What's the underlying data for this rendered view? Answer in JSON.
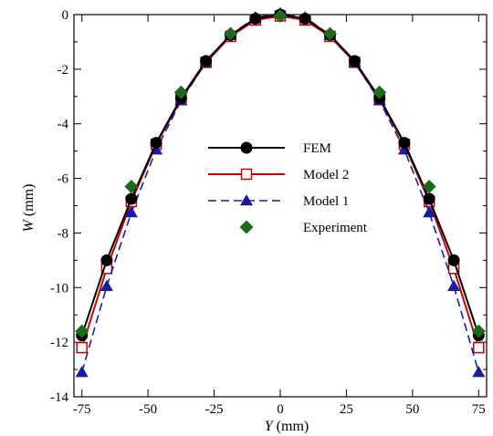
{
  "chart_data": {
    "type": "line",
    "xlabel": {
      "symbol": "Y",
      "unit": " (mm)"
    },
    "ylabel": {
      "symbol": "W",
      "unit": " (mm)"
    },
    "xlim": [
      -78,
      78
    ],
    "ylim": [
      -14,
      0
    ],
    "xticks": [
      -75,
      -50,
      -25,
      0,
      25,
      50,
      75
    ],
    "yticks": [
      0,
      -2,
      -4,
      -6,
      -8,
      -10,
      -12,
      -14
    ],
    "grid": false,
    "legend": "center",
    "series": [
      {
        "name": "FEM",
        "color": "#000000",
        "marker": "circle",
        "line": "solid",
        "x": [
          -75,
          -65.6,
          -56.3,
          -46.9,
          -37.5,
          -28.1,
          -18.8,
          -9.4,
          0,
          9.4,
          18.8,
          28.1,
          37.5,
          46.9,
          56.3,
          65.6,
          75
        ],
        "y": [
          -11.75,
          -9.0,
          -6.75,
          -4.7,
          -3.05,
          -1.7,
          -0.75,
          -0.15,
          0.0,
          -0.15,
          -0.75,
          -1.7,
          -3.05,
          -4.7,
          -6.75,
          -9.0,
          -11.75
        ]
      },
      {
        "name": "Model 2",
        "color": "#cc0000",
        "marker": "square-open",
        "line": "solid",
        "x": [
          -75,
          -65.6,
          -56.3,
          -46.9,
          -37.5,
          -28.1,
          -18.8,
          -9.4,
          0,
          9.4,
          18.8,
          28.1,
          37.5,
          46.9,
          56.3,
          65.6,
          75
        ],
        "y": [
          -12.2,
          -9.3,
          -6.85,
          -4.75,
          -3.1,
          -1.75,
          -0.8,
          -0.2,
          -0.05,
          -0.2,
          -0.8,
          -1.75,
          -3.1,
          -4.75,
          -6.85,
          -9.3,
          -12.2
        ]
      },
      {
        "name": "Model 1",
        "color": "#1a1aa6",
        "marker": "triangle",
        "line": "dashed",
        "x": [
          -75,
          -65.6,
          -56.3,
          -46.9,
          -37.5,
          -28.1,
          -18.8,
          -9.4,
          0,
          9.4,
          18.8,
          28.1,
          37.5,
          46.9,
          56.3,
          65.6,
          75
        ],
        "y": [
          -13.1,
          -9.95,
          -7.25,
          -4.95,
          -3.15,
          -1.75,
          -0.75,
          -0.1,
          0.05,
          -0.1,
          -0.75,
          -1.75,
          -3.15,
          -4.95,
          -7.25,
          -9.95,
          -13.1
        ]
      },
      {
        "name": "Experiment",
        "color": "#1a6b1a",
        "marker": "diamond",
        "line": "none",
        "x": [
          -75,
          -56.3,
          -37.5,
          -18.8,
          0,
          18.8,
          37.5,
          56.3,
          75
        ],
        "y": [
          -11.6,
          -6.3,
          -2.85,
          -0.7,
          -0.05,
          -0.7,
          -2.85,
          -6.3,
          -11.6
        ]
      }
    ]
  }
}
